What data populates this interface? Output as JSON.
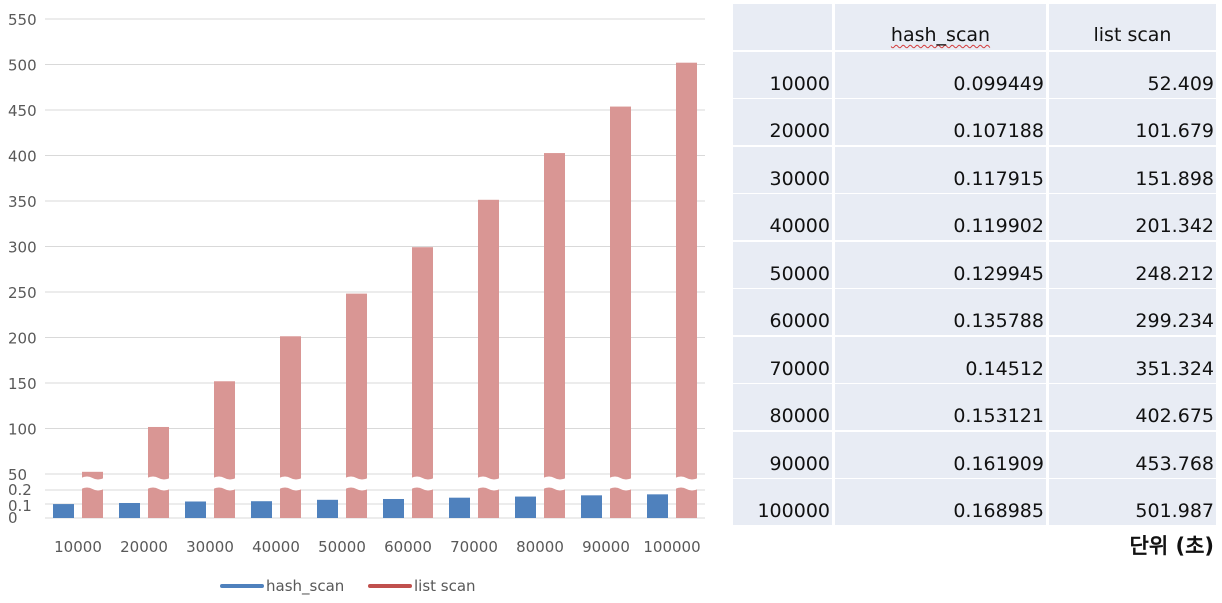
{
  "chart_data": {
    "type": "bar",
    "y_axis_broken": true,
    "categories": [
      "10000",
      "20000",
      "30000",
      "40000",
      "50000",
      "60000",
      "70000",
      "80000",
      "90000",
      "100000"
    ],
    "series": [
      {
        "name": "hash_scan",
        "color": "#4f81bd",
        "values": [
          0.099449,
          0.107188,
          0.117915,
          0.119902,
          0.129945,
          0.135788,
          0.14512,
          0.153121,
          0.161909,
          0.168985
        ]
      },
      {
        "name": "list scan",
        "color": "#d99694",
        "values": [
          52.409,
          101.679,
          151.898,
          201.342,
          248.212,
          299.234,
          351.324,
          402.675,
          453.768,
          501.987
        ]
      }
    ],
    "lower_ticks": [
      "0",
      "0.1",
      "0.2"
    ],
    "upper_ticks": [
      "50",
      "100",
      "150",
      "200",
      "250",
      "300",
      "350",
      "400",
      "450",
      "500",
      "550"
    ],
    "lower_range": [
      0,
      0.2
    ],
    "upper_range": [
      50,
      550
    ],
    "legend_position": "bottom",
    "legend_color_list": "#c0504d"
  },
  "table": {
    "headers": [
      "",
      "hash_scan",
      "list scan"
    ],
    "rows": [
      [
        "10000",
        "0.099449",
        "52.409"
      ],
      [
        "20000",
        "0.107188",
        "101.679"
      ],
      [
        "30000",
        "0.117915",
        "151.898"
      ],
      [
        "40000",
        "0.119902",
        "201.342"
      ],
      [
        "50000",
        "0.129945",
        "248.212"
      ],
      [
        "60000",
        "0.135788",
        "299.234"
      ],
      [
        "70000",
        "0.14512",
        "351.324"
      ],
      [
        "80000",
        "0.153121",
        "402.675"
      ],
      [
        "90000",
        "0.161909",
        "453.768"
      ],
      [
        "100000",
        "0.168985",
        "501.987"
      ]
    ],
    "unit_label": "단위 (초)"
  }
}
